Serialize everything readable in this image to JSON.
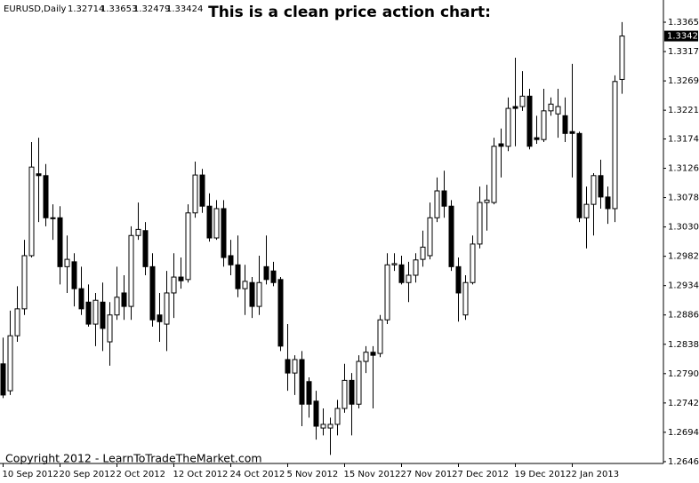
{
  "chart_data": {
    "type": "candlestick",
    "title": "This is a clean price action chart:",
    "symbol": "EURUSD,Daily",
    "annotation": "Copyright 2012 - LearnToTradeTheMarket.com",
    "categories": [
      "10 Sep 2012",
      null,
      null,
      null,
      null,
      null,
      null,
      null,
      "20 Sep 2012",
      null,
      null,
      null,
      null,
      null,
      null,
      null,
      "2 Oct 2012",
      null,
      null,
      null,
      null,
      null,
      null,
      null,
      "12 Oct 2012",
      null,
      null,
      null,
      null,
      null,
      null,
      null,
      "24 Oct 2012",
      null,
      null,
      null,
      null,
      null,
      null,
      null,
      "5 Nov 2012",
      null,
      null,
      null,
      null,
      null,
      null,
      null,
      "15 Nov 2012",
      null,
      null,
      null,
      null,
      null,
      null,
      null,
      "27 Nov 2012",
      null,
      null,
      null,
      null,
      null,
      null,
      null,
      "7 Dec 2012",
      null,
      null,
      null,
      null,
      null,
      null,
      null,
      "19 Dec 2012",
      null,
      null,
      null,
      null,
      null,
      null,
      null,
      "2 Jan 2013",
      null,
      null,
      null,
      null,
      null,
      null,
      null
    ],
    "open": [
      1.2806,
      1.2762,
      1.2852,
      1.2896,
      1.2983,
      1.3117,
      1.3114,
      1.3045,
      1.3045,
      1.2965,
      1.2973,
      1.2929,
      1.2907,
      1.2871,
      1.2907,
      1.2842,
      1.2886,
      1.2922,
      1.29,
      1.3016,
      1.3024,
      1.2965,
      1.2886,
      1.2871,
      1.2922,
      1.2948,
      1.2944,
      1.3053,
      1.3115,
      1.3064,
      1.3012,
      1.306,
      1.2983,
      1.2968,
      1.2929,
      1.2939,
      1.29,
      1.2965,
      1.2958,
      1.2944,
      1.2813,
      1.2791,
      1.2813,
      1.2777,
      1.2745,
      1.2701,
      1.2701,
      1.2707,
      1.2733,
      1.2779,
      1.274,
      1.281,
      1.2825,
      1.2823,
      1.2878,
      1.2968,
      1.2968,
      1.2939,
      1.2951,
      1.2977,
      1.2983,
      1.3045,
      1.3089,
      1.3064,
      1.2965,
      1.2886,
      1.2939,
      1.3002,
      1.307,
      1.307,
      1.3166,
      1.3162,
      1.3227,
      1.3227,
      1.3244,
      1.3176,
      1.3173,
      1.322,
      1.3215,
      1.3212,
      1.3186,
      1.3183,
      1.3045,
      1.3067,
      1.3114,
      1.3079,
      1.306,
      1.32714
    ],
    "high": [
      1.2849,
      1.2893,
      1.2933,
      1.3009,
      1.3169,
      1.3176,
      1.3133,
      1.3067,
      1.3064,
      1.3016,
      1.2987,
      1.2965,
      1.2936,
      1.2922,
      1.2939,
      1.2907,
      1.2965,
      1.2951,
      1.3031,
      1.307,
      1.3038,
      1.2987,
      1.2922,
      1.2958,
      1.2987,
      1.298,
      1.3067,
      1.3137,
      1.3125,
      1.3085,
      1.3074,
      1.3074,
      1.3009,
      1.3016,
      1.2968,
      1.2948,
      1.2983,
      1.3016,
      1.2973,
      1.2948,
      1.2871,
      1.282,
      1.2827,
      1.2784,
      1.2762,
      1.2733,
      1.2718,
      1.2747,
      1.2806,
      1.2791,
      1.282,
      1.2835,
      1.2835,
      1.2886,
      1.2987,
      1.2987,
      1.2983,
      1.2973,
      1.2987,
      1.3024,
      1.307,
      1.3111,
      1.3122,
      1.3074,
      1.298,
      1.2951,
      1.3016,
      1.3096,
      1.3099,
      1.3176,
      1.3191,
      1.3242,
      1.3307,
      1.3285,
      1.3256,
      1.3212,
      1.3256,
      1.3242,
      1.3256,
      1.3242,
      1.3297,
      1.3186,
      1.3096,
      1.3118,
      1.314,
      1.3096,
      1.3278,
      1.33653
    ],
    "low": [
      1.275,
      1.2755,
      1.2842,
      1.2886,
      1.298,
      1.3038,
      1.3031,
      1.3009,
      1.2936,
      1.2922,
      1.29,
      1.2886,
      1.2867,
      1.2835,
      1.2827,
      1.2803,
      1.2878,
      1.2878,
      1.2878,
      1.3009,
      1.2951,
      1.2867,
      1.2842,
      1.2827,
      1.2881,
      1.2929,
      1.2939,
      1.3045,
      1.3053,
      1.3006,
      1.3009,
      1.2965,
      1.2951,
      1.2915,
      1.2886,
      1.2881,
      1.2886,
      1.2936,
      1.2933,
      1.2827,
      1.2762,
      1.2755,
      1.2704,
      1.2718,
      1.2682,
      1.2689,
      1.2657,
      1.2689,
      1.2726,
      1.2689,
      1.2733,
      1.2791,
      1.2733,
      1.2817,
      1.2871,
      1.2958,
      1.2936,
      1.2907,
      1.2939,
      1.2965,
      1.2977,
      1.3038,
      1.3045,
      1.2958,
      1.2875,
      1.2878,
      1.2936,
      1.2995,
      1.3024,
      1.3067,
      1.3111,
      1.3154,
      1.3162,
      1.322,
      1.3157,
      1.3166,
      1.3169,
      1.3212,
      1.3176,
      1.3169,
      1.3111,
      1.3038,
      1.2995,
      1.3016,
      1.306,
      1.3035,
      1.3038,
      1.32479
    ],
    "close": [
      1.2755,
      1.2852,
      1.2896,
      1.2983,
      1.3128,
      1.3114,
      1.3045,
      1.3044,
      1.2965,
      1.2977,
      1.2929,
      1.2896,
      1.2871,
      1.291,
      1.2864,
      1.2886,
      1.2915,
      1.29,
      1.3016,
      1.3026,
      1.2965,
      1.2878,
      1.2875,
      1.2922,
      1.2948,
      1.2942,
      1.3053,
      1.3115,
      1.3064,
      1.3012,
      1.306,
      1.298,
      1.2968,
      1.2929,
      1.2941,
      1.29,
      1.2939,
      1.2944,
      1.2939,
      1.2835,
      1.2791,
      1.2813,
      1.274,
      1.274,
      1.2704,
      1.2707,
      1.2707,
      1.2733,
      1.2779,
      1.274,
      1.281,
      1.2825,
      1.282,
      1.2878,
      1.2968,
      1.297,
      1.2939,
      1.2951,
      1.2976,
      1.2997,
      1.3045,
      1.3089,
      1.3064,
      1.2965,
      1.2922,
      1.2939,
      1.3002,
      1.307,
      1.3074,
      1.3162,
      1.3162,
      1.3224,
      1.3224,
      1.3244,
      1.3162,
      1.3173,
      1.322,
      1.3231,
      1.3227,
      1.3183,
      1.3183,
      1.3045,
      1.3067,
      1.3114,
      1.3079,
      1.306,
      1.3268,
      1.33424
    ],
    "up_color": "#ffffff",
    "down_color": "#000000",
    "title_color": "#e8141c",
    "ylim": [
      1.2643,
      1.3397
    ],
    "yticks": [
      {
        "value": 1.3365,
        "label": "1.33650"
      },
      {
        "value": 1.3317,
        "label": "1.33170"
      },
      {
        "value": 1.3269,
        "label": "1.32690"
      },
      {
        "value": 1.3221,
        "label": "1.32210"
      },
      {
        "value": 1.3174,
        "label": "1.31740"
      },
      {
        "value": 1.3126,
        "label": "1.31260"
      },
      {
        "value": 1.3078,
        "label": "1.30780"
      },
      {
        "value": 1.303,
        "label": "1.30300"
      },
      {
        "value": 1.2982,
        "label": "1.29820"
      },
      {
        "value": 1.2934,
        "label": "1.29340"
      },
      {
        "value": 1.2886,
        "label": "1.28860"
      },
      {
        "value": 1.2838,
        "label": "1.28380"
      },
      {
        "value": 1.279,
        "label": "1.27900"
      },
      {
        "value": 1.2742,
        "label": "1.27420"
      },
      {
        "value": 1.2694,
        "label": "1.26940"
      },
      {
        "value": 1.2646,
        "label": "1.26460"
      }
    ],
    "grid": false
  }
}
